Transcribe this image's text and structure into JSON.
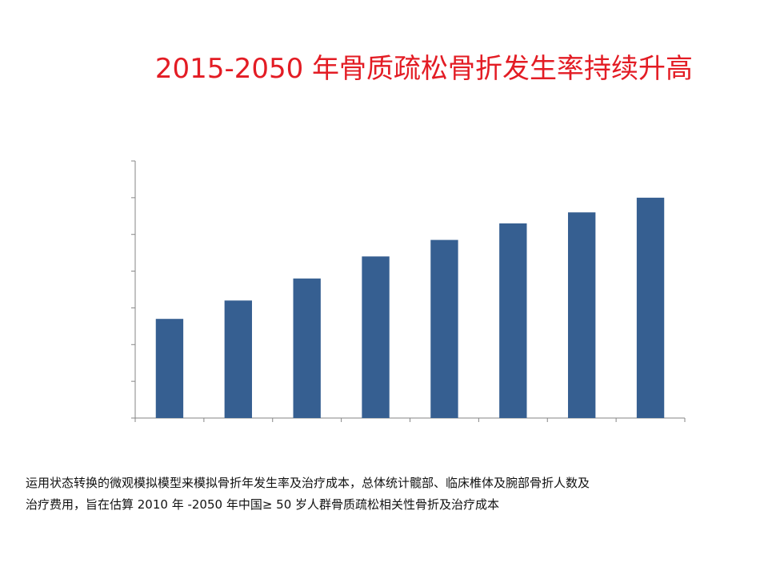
{
  "title": "2015-2050 年骨质疏松骨折发生率持续升高",
  "caption": {
    "line1": "运用状态转换的微观模拟模型来模拟骨折年发生率及治疗成本，总体统计髋部、临床椎体及腕部骨折人数及",
    "line2": "治疗费用，旨在估算 2010 年 -2050 年中国≥ 50 岁人群骨质疏松相关性骨折及治疗成本"
  },
  "colors": {
    "title": "#e31c24",
    "bar": "#365f91",
    "axis": "#868686"
  },
  "chart_data": {
    "type": "bar",
    "categories": [
      "",
      "",
      "",
      "",
      "",
      "",
      "",
      ""
    ],
    "values": [
      2.7,
      3.2,
      3.8,
      4.4,
      4.85,
      5.3,
      5.6,
      6.0
    ],
    "ylim": [
      0,
      7
    ],
    "y_ticks": 7,
    "grid": false,
    "legend": "none"
  }
}
